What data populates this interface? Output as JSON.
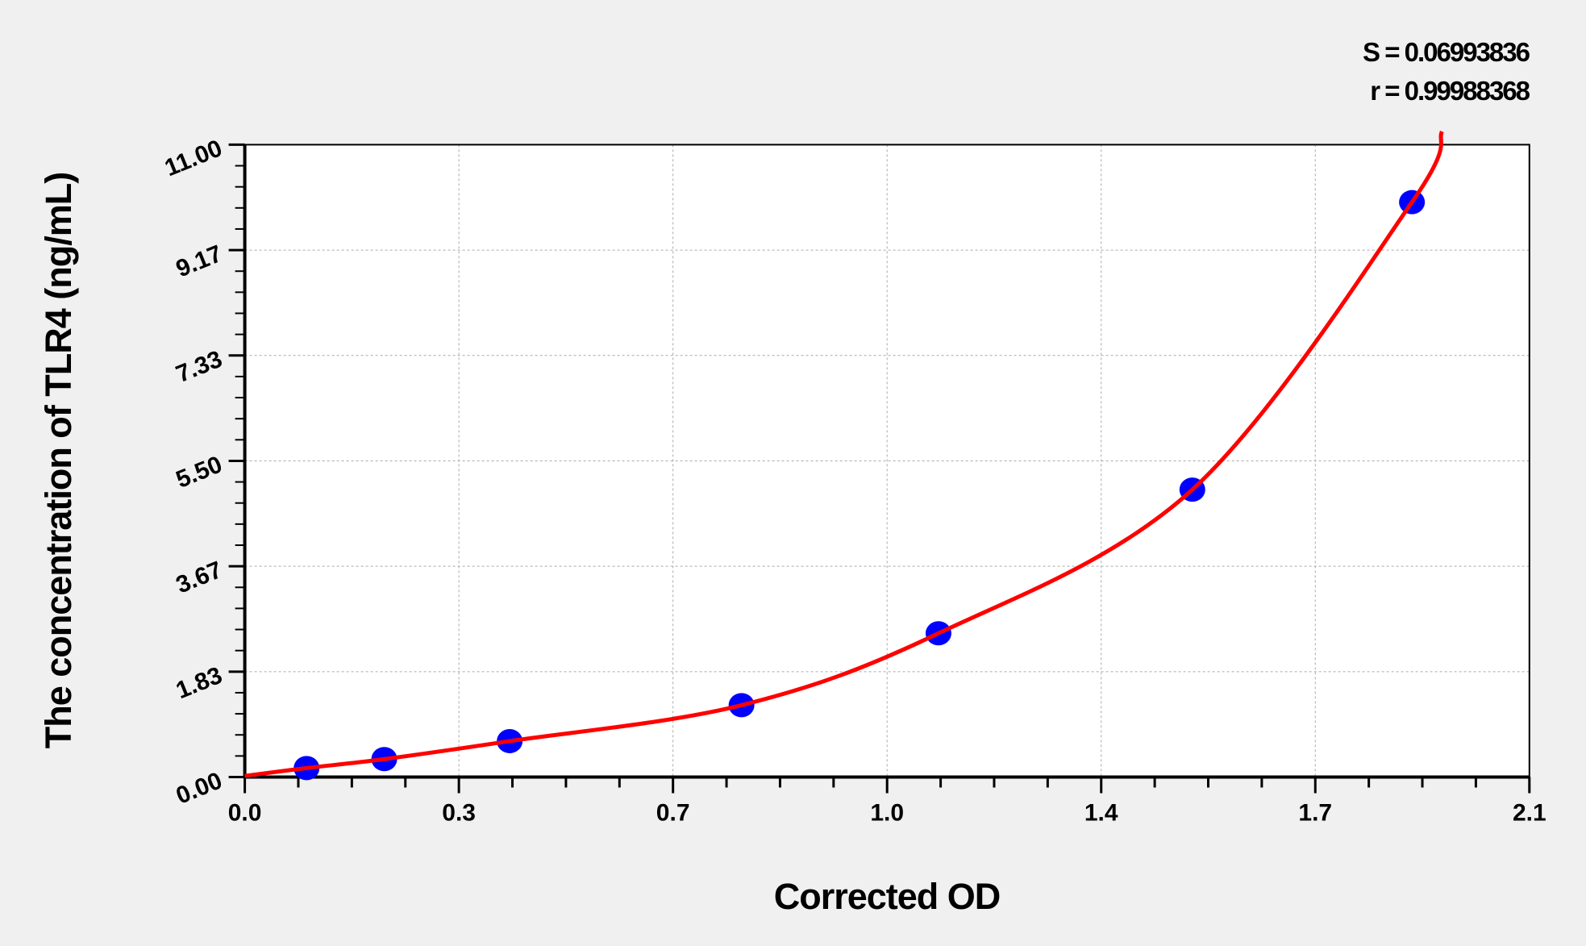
{
  "chart_data": {
    "type": "scatter",
    "title": "",
    "xlabel": "Corrected OD",
    "ylabel": "The concentration of TLR4 (ng/mL)",
    "xlim": [
      0,
      2.1
    ],
    "ylim": [
      0,
      11
    ],
    "x_ticks": [
      "0.0",
      "0.3",
      "0.7",
      "1.0",
      "1.4",
      "1.7",
      "2.1"
    ],
    "y_ticks": [
      "0.00",
      "1.83",
      "3.67",
      "5.50",
      "7.33",
      "9.17",
      "11.00"
    ],
    "grid": true,
    "annotations": [
      "S = 0.06993836",
      "r = 0.99988368"
    ],
    "series": [
      {
        "type": "scatter",
        "color": "#0000ff",
        "x": [
          0.101,
          0.228,
          0.433,
          0.812,
          1.134,
          1.549,
          1.908
        ],
        "y": [
          0.156,
          0.312,
          0.625,
          1.25,
          2.5,
          5.0,
          10.0
        ]
      },
      {
        "type": "line",
        "color": "#ff0000",
        "fit": "standard curve"
      }
    ]
  }
}
